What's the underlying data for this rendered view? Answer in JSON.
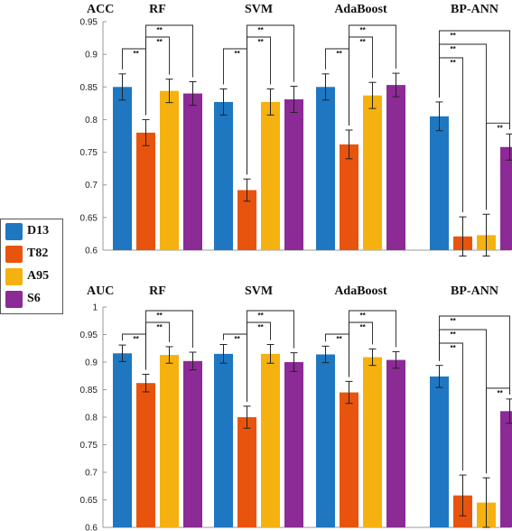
{
  "legend": {
    "items": [
      {
        "label": "D13",
        "color": "#1f77c2"
      },
      {
        "label": "T82",
        "color": "#e8540e"
      },
      {
        "label": "A95",
        "color": "#f5b10f"
      },
      {
        "label": "S6",
        "color": "#8c2a96"
      }
    ]
  },
  "sig_label": "**",
  "chart_data": [
    {
      "type": "bar",
      "metric": "ACC",
      "series_names": [
        "D13",
        "T82",
        "A95",
        "S6"
      ],
      "ylim": [
        0.6,
        0.95
      ],
      "yticks": [
        0.6,
        0.65,
        0.7,
        0.75,
        0.8,
        0.85,
        0.9,
        0.95
      ],
      "groups": [
        {
          "name": "RF",
          "values": [
            0.85,
            0.78,
            0.844,
            0.84
          ],
          "errors": [
            0.02,
            0.02,
            0.018,
            0.018
          ],
          "sig": [
            [
              0,
              1
            ],
            [
              1,
              2
            ],
            [
              1,
              3
            ]
          ]
        },
        {
          "name": "SVM",
          "values": [
            0.827,
            0.692,
            0.827,
            0.831
          ],
          "errors": [
            0.02,
            0.017,
            0.02,
            0.02
          ],
          "sig": [
            [
              0,
              1
            ],
            [
              1,
              2
            ],
            [
              1,
              3
            ]
          ]
        },
        {
          "name": "AdaBoost",
          "values": [
            0.85,
            0.762,
            0.837,
            0.853
          ],
          "errors": [
            0.02,
            0.022,
            0.02,
            0.018
          ],
          "sig": [
            [
              0,
              1
            ],
            [
              1,
              2
            ],
            [
              1,
              3
            ]
          ]
        },
        {
          "name": "BP-ANN",
          "values": [
            0.805,
            0.621,
            0.623,
            0.758
          ],
          "errors": [
            0.022,
            0.03,
            0.032,
            0.02
          ],
          "sig": [
            [
              0,
              1
            ],
            [
              0,
              2
            ],
            [
              0,
              3
            ],
            [
              2,
              3
            ]
          ]
        }
      ]
    },
    {
      "type": "bar",
      "metric": "AUC",
      "series_names": [
        "D13",
        "T82",
        "A95",
        "S6"
      ],
      "ylim": [
        0.6,
        1.0
      ],
      "yticks": [
        0.6,
        0.65,
        0.7,
        0.75,
        0.8,
        0.85,
        0.9,
        0.95,
        1
      ],
      "groups": [
        {
          "name": "RF",
          "values": [
            0.916,
            0.862,
            0.913,
            0.902
          ],
          "errors": [
            0.015,
            0.016,
            0.015,
            0.016
          ],
          "sig": [
            [
              0,
              1
            ],
            [
              1,
              2
            ],
            [
              1,
              3
            ]
          ]
        },
        {
          "name": "SVM",
          "values": [
            0.915,
            0.8,
            0.915,
            0.9
          ],
          "errors": [
            0.017,
            0.02,
            0.017,
            0.017
          ],
          "sig": [
            [
              0,
              1
            ],
            [
              1,
              2
            ],
            [
              1,
              3
            ]
          ]
        },
        {
          "name": "AdaBoost",
          "values": [
            0.914,
            0.845,
            0.909,
            0.904
          ],
          "errors": [
            0.015,
            0.02,
            0.015,
            0.015
          ],
          "sig": [
            [
              0,
              1
            ],
            [
              1,
              2
            ],
            [
              1,
              3
            ]
          ]
        },
        {
          "name": "BP-ANN",
          "values": [
            0.874,
            0.658,
            0.645,
            0.811
          ],
          "errors": [
            0.02,
            0.037,
            0.045,
            0.022
          ],
          "sig": [
            [
              0,
              1
            ],
            [
              0,
              2
            ],
            [
              0,
              3
            ],
            [
              2,
              3
            ]
          ]
        }
      ]
    }
  ]
}
